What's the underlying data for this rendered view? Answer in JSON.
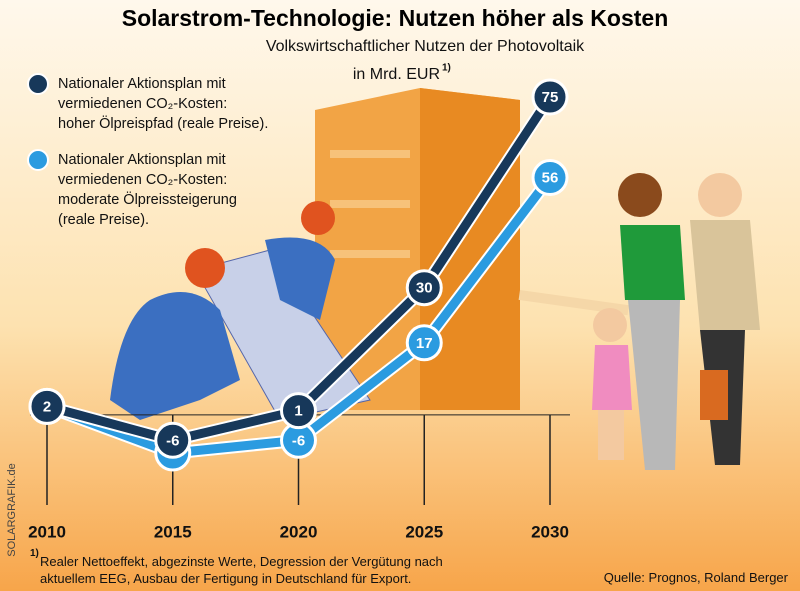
{
  "chart_data": {
    "type": "line",
    "title": "Solarstrom-Technologie: Nutzen höher als Kosten",
    "subtitle": "Volkswirtschaftlicher Nutzen der Photovoltaik",
    "unit": "in Mrd. EUR",
    "footnote_marker": "1)",
    "x": [
      2010,
      2015,
      2020,
      2025,
      2030
    ],
    "xticks": [
      2010,
      2015,
      2020,
      2025,
      2030
    ],
    "series": [
      {
        "name": "Nationaler Aktionsplan mit\nvermiedenen CO₂-Kosten:\nhoher Ölpreispfad (reale Preise).",
        "color": "#17385a",
        "values": [
          2,
          -6,
          1,
          30,
          75
        ]
      },
      {
        "name": "Nationaler Aktionsplan mit\nvermiedenen CO₂-Kosten:\nmoderate Ölpreissteigerung\n(reale Preise).",
        "color": "#2b9be0",
        "values": [
          2,
          -9,
          -6,
          17,
          56
        ]
      }
    ],
    "footnote": "Realer Nettoeffekt, abgezinste Werte, Degression der Vergütung nach\naktuellem EEG, Ausbau der Fertigung in Deutschland für Export.",
    "source": "Quelle: Prognos, Roland Berger",
    "watermark": "SOLARGRAFIK.de"
  }
}
